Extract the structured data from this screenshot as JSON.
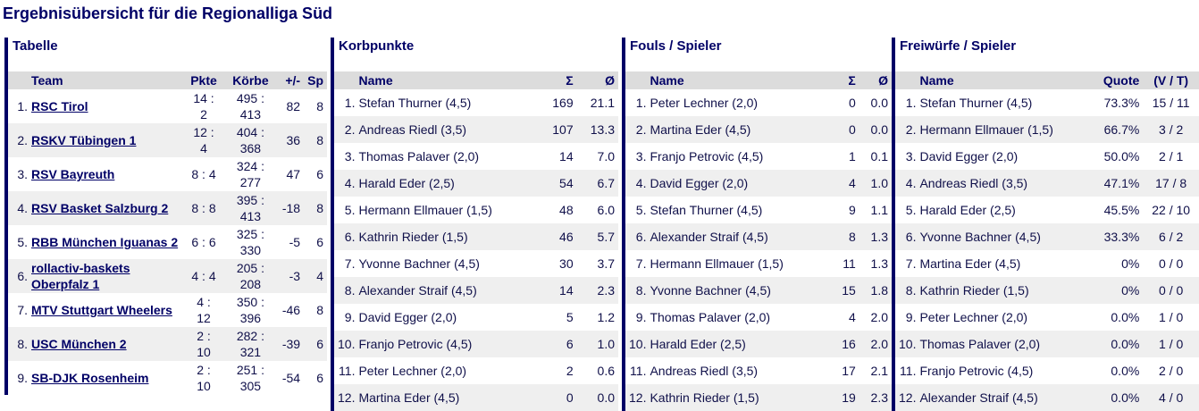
{
  "title": "Ergebnisübersicht für die Regionalliga Süd",
  "tabelle": {
    "heading": "Tabelle",
    "columns": [
      "Team",
      "Pkte",
      "Körbe",
      "+/-",
      "Sp"
    ],
    "rows": [
      [
        "1.",
        "RSC Tirol",
        "14 : 2",
        "495 : 413",
        "82",
        "8"
      ],
      [
        "2.",
        "RSKV Tübingen 1",
        "12 : 4",
        "404 : 368",
        "36",
        "8"
      ],
      [
        "3.",
        "RSV Bayreuth",
        "8 : 4",
        "324 : 277",
        "47",
        "6"
      ],
      [
        "4.",
        "RSV Basket Salzburg 2",
        "8 : 8",
        "395 : 413",
        "-18",
        "8"
      ],
      [
        "5.",
        "RBB München Iguanas 2",
        "6 : 6",
        "325 : 330",
        "-5",
        "6"
      ],
      [
        "6.",
        "rollactiv-baskets Oberpfalz 1",
        "4 : 4",
        "205 : 208",
        "-3",
        "4"
      ],
      [
        "7.",
        "MTV Stuttgart Wheelers",
        "4 : 12",
        "350 : 396",
        "-46",
        "8"
      ],
      [
        "8.",
        "USC München 2",
        "2 : 10",
        "282 : 321",
        "-39",
        "6"
      ],
      [
        "9.",
        "SB-DJK Rosenheim",
        "2 : 10",
        "251 : 305",
        "-54",
        "6"
      ]
    ]
  },
  "korbpunkte": {
    "heading": "Korbpunkte",
    "columns": [
      "Name",
      "Σ",
      "Ø"
    ],
    "rows": [
      [
        "1.",
        "Stefan Thurner (4,5)",
        "169",
        "21.1"
      ],
      [
        "2.",
        "Andreas Riedl (3,5)",
        "107",
        "13.3"
      ],
      [
        "3.",
        "Thomas Palaver (2,0)",
        "14",
        "7.0"
      ],
      [
        "4.",
        "Harald Eder (2,5)",
        "54",
        "6.7"
      ],
      [
        "5.",
        "Hermann Ellmauer (1,5)",
        "48",
        "6.0"
      ],
      [
        "6.",
        "Kathrin Rieder (1,5)",
        "46",
        "5.7"
      ],
      [
        "7.",
        "Yvonne Bachner (4,5)",
        "30",
        "3.7"
      ],
      [
        "8.",
        "Alexander Straif (4,5)",
        "14",
        "2.3"
      ],
      [
        "9.",
        "David Egger (2,0)",
        "5",
        "1.2"
      ],
      [
        "10.",
        "Franjo Petrovic (4,5)",
        "6",
        "1.0"
      ],
      [
        "11.",
        "Peter Lechner (2,0)",
        "2",
        "0.6"
      ],
      [
        "12.",
        "Martina Eder (4,5)",
        "0",
        "0.0"
      ]
    ]
  },
  "fouls": {
    "heading": "Fouls / Spieler",
    "columns": [
      "Name",
      "Σ",
      "Ø"
    ],
    "rows": [
      [
        "1.",
        "Peter Lechner (2,0)",
        "0",
        "0.0"
      ],
      [
        "2.",
        "Martina Eder (4,5)",
        "0",
        "0.0"
      ],
      [
        "3.",
        "Franjo Petrovic (4,5)",
        "1",
        "0.1"
      ],
      [
        "4.",
        "David Egger (2,0)",
        "4",
        "1.0"
      ],
      [
        "5.",
        "Stefan Thurner (4,5)",
        "9",
        "1.1"
      ],
      [
        "6.",
        "Alexander Straif (4,5)",
        "8",
        "1.3"
      ],
      [
        "7.",
        "Hermann Ellmauer (1,5)",
        "11",
        "1.3"
      ],
      [
        "8.",
        "Yvonne Bachner (4,5)",
        "15",
        "1.8"
      ],
      [
        "9.",
        "Thomas Palaver (2,0)",
        "4",
        "2.0"
      ],
      [
        "10.",
        "Harald Eder (2,5)",
        "16",
        "2.0"
      ],
      [
        "11.",
        "Andreas Riedl (3,5)",
        "17",
        "2.1"
      ],
      [
        "12.",
        "Kathrin Rieder (1,5)",
        "19",
        "2.3"
      ]
    ]
  },
  "freiwuerfe": {
    "heading": "Freiwürfe / Spieler",
    "columns": [
      "Name",
      "Quote",
      "(V / T)"
    ],
    "rows": [
      [
        "1.",
        "Stefan Thurner (4,5)",
        "73.3%",
        "15 / 11"
      ],
      [
        "2.",
        "Hermann Ellmauer (1,5)",
        "66.7%",
        "3 / 2"
      ],
      [
        "3.",
        "David Egger (2,0)",
        "50.0%",
        "2 / 1"
      ],
      [
        "4.",
        "Andreas Riedl (3,5)",
        "47.1%",
        "17 / 8"
      ],
      [
        "5.",
        "Harald Eder (2,5)",
        "45.5%",
        "22 / 10"
      ],
      [
        "6.",
        "Yvonne Bachner (4,5)",
        "33.3%",
        "6 / 2"
      ],
      [
        "7.",
        "Martina Eder (4,5)",
        "0%",
        "0 / 0"
      ],
      [
        "8.",
        "Kathrin Rieder (1,5)",
        "0%",
        "0 / 0"
      ],
      [
        "9.",
        "Peter Lechner (2,0)",
        "0.0%",
        "1 / 0"
      ],
      [
        "10.",
        "Thomas Palaver (2,0)",
        "0.0%",
        "1 / 0"
      ],
      [
        "11.",
        "Franjo Petrovic (4,5)",
        "0.0%",
        "2 / 0"
      ],
      [
        "12.",
        "Alexander Straif (4,5)",
        "0.0%",
        "4 / 0"
      ]
    ]
  }
}
